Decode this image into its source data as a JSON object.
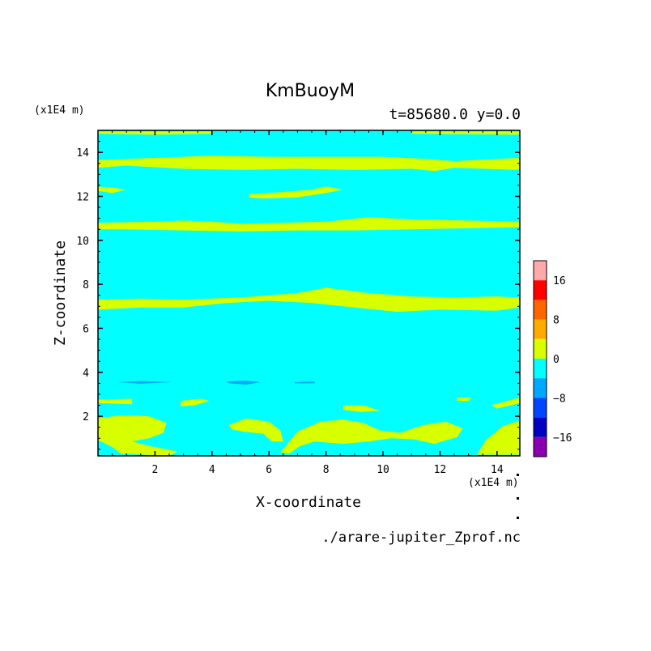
{
  "chart_data": {
    "type": "heatmap",
    "title": "KmBuoyM",
    "subtitle": "t=85680.0 y=0.0",
    "xlabel": "X-coordinate",
    "ylabel": "Z-coordinate",
    "x_unit": "(x1E4 m)",
    "y_unit": "(x1E4 m)",
    "xlim": [
      0,
      14.8
    ],
    "ylim": [
      0.2,
      15
    ],
    "xticks": [
      "2",
      "4",
      "6",
      "8",
      "10",
      "12",
      "14"
    ],
    "xtick_values": [
      2,
      4,
      6,
      8,
      10,
      12,
      14
    ],
    "yticks": [
      "2",
      "4",
      "6",
      "8",
      "10",
      "12",
      "14"
    ],
    "ytick_values": [
      2,
      4,
      6,
      8,
      10,
      12,
      14
    ],
    "background_level_color": "#00ffff",
    "bands": [
      {
        "level": "0 to 4",
        "color": "#d7ff00",
        "points": [
          [
            0,
            13.65
          ],
          [
            2,
            13.75
          ],
          [
            4,
            13.85
          ],
          [
            6,
            13.8
          ],
          [
            8,
            13.8
          ],
          [
            10,
            13.8
          ],
          [
            11.5,
            13.7
          ],
          [
            12.5,
            13.6
          ],
          [
            14.8,
            13.75
          ],
          [
            14.8,
            13.2
          ],
          [
            12.5,
            13.3
          ],
          [
            11.8,
            13.15
          ],
          [
            11,
            13.25
          ],
          [
            9,
            13.2
          ],
          [
            7,
            13.25
          ],
          [
            5,
            13.2
          ],
          [
            3,
            13.25
          ],
          [
            1,
            13.4
          ],
          [
            0,
            13.3
          ]
        ]
      },
      {
        "level": "0 to 4",
        "color": "#d7ff00",
        "points": [
          [
            0,
            12.45
          ],
          [
            0.5,
            12.4
          ],
          [
            1,
            12.3
          ],
          [
            0.5,
            12.15
          ],
          [
            0,
            12.25
          ]
        ]
      },
      {
        "level": "0 to 4",
        "color": "#d7ff00",
        "points": [
          [
            5.3,
            12.1
          ],
          [
            6.5,
            12.2
          ],
          [
            7.5,
            12.3
          ],
          [
            8,
            12.45
          ],
          [
            8.6,
            12.3
          ],
          [
            8,
            12.15
          ],
          [
            7,
            11.95
          ],
          [
            5.8,
            11.9
          ],
          [
            5.3,
            11.95
          ]
        ]
      },
      {
        "level": "0 to 4",
        "color": "#d7ff00",
        "points": [
          [
            0,
            10.8
          ],
          [
            2,
            10.85
          ],
          [
            3,
            10.9
          ],
          [
            4,
            10.85
          ],
          [
            5,
            10.75
          ],
          [
            6.5,
            10.8
          ],
          [
            8,
            10.85
          ],
          [
            9.5,
            11.05
          ],
          [
            11,
            10.95
          ],
          [
            13,
            10.9
          ],
          [
            14.8,
            10.85
          ],
          [
            14.8,
            10.6
          ],
          [
            13,
            10.55
          ],
          [
            11,
            10.5
          ],
          [
            9,
            10.45
          ],
          [
            7,
            10.45
          ],
          [
            5,
            10.4
          ],
          [
            3,
            10.45
          ],
          [
            1,
            10.5
          ],
          [
            0,
            10.5
          ]
        ]
      },
      {
        "level": "0 to 4",
        "color": "#d7ff00",
        "points": [
          [
            0,
            7.3
          ],
          [
            1.5,
            7.35
          ],
          [
            3,
            7.3
          ],
          [
            5,
            7.4
          ],
          [
            7,
            7.6
          ],
          [
            8,
            7.85
          ],
          [
            9.5,
            7.6
          ],
          [
            11,
            7.45
          ],
          [
            12.5,
            7.4
          ],
          [
            14,
            7.45
          ],
          [
            14.8,
            7.4
          ],
          [
            14.8,
            6.95
          ],
          [
            14,
            6.8
          ],
          [
            12,
            6.85
          ],
          [
            10.5,
            6.75
          ],
          [
            9,
            6.95
          ],
          [
            7.5,
            7.15
          ],
          [
            6,
            7.25
          ],
          [
            4.5,
            7.15
          ],
          [
            3,
            6.95
          ],
          [
            1.5,
            6.95
          ],
          [
            0,
            6.85
          ]
        ]
      },
      {
        "level": "0 to 4",
        "color": "#d7ff00",
        "points": [
          [
            0,
            2.75
          ],
          [
            1.2,
            2.8
          ],
          [
            1.2,
            2.55
          ],
          [
            0,
            2.6
          ]
        ]
      },
      {
        "level": "0 to 4",
        "color": "#d7ff00",
        "points": [
          [
            2.9,
            2.7
          ],
          [
            3.6,
            2.8
          ],
          [
            3.9,
            2.7
          ],
          [
            3.4,
            2.5
          ],
          [
            2.9,
            2.45
          ]
        ]
      },
      {
        "level": "0 to 4",
        "color": "#d7ff00",
        "points": [
          [
            0,
            1.9
          ],
          [
            0.8,
            2.05
          ],
          [
            1.8,
            2.0
          ],
          [
            2.4,
            1.7
          ],
          [
            2.3,
            1.25
          ],
          [
            1.8,
            1.0
          ],
          [
            1.2,
            0.85
          ],
          [
            2,
            0.6
          ],
          [
            2.8,
            0.4
          ],
          [
            2.5,
            0.2
          ],
          [
            0.8,
            0.3
          ],
          [
            0.5,
            0.6
          ],
          [
            0.2,
            0.8
          ],
          [
            0,
            0.9
          ]
        ]
      },
      {
        "level": "0 to 4",
        "color": "#d7ff00",
        "points": [
          [
            4.6,
            1.6
          ],
          [
            5.2,
            1.9
          ],
          [
            6,
            1.75
          ],
          [
            6.4,
            1.35
          ],
          [
            6.5,
            0.85
          ],
          [
            6.1,
            0.85
          ],
          [
            5.8,
            1.2
          ],
          [
            5.1,
            1.3
          ],
          [
            4.7,
            1.4
          ]
        ]
      },
      {
        "level": "0 to 4",
        "color": "#d7ff00",
        "points": [
          [
            6.4,
            0.35
          ],
          [
            7.0,
            1.3
          ],
          [
            7.8,
            1.75
          ],
          [
            8.6,
            1.85
          ],
          [
            9.3,
            1.7
          ],
          [
            9.9,
            1.35
          ],
          [
            10.6,
            1.25
          ],
          [
            11.4,
            1.6
          ],
          [
            12.2,
            1.75
          ],
          [
            12.8,
            1.45
          ],
          [
            12.6,
            1.05
          ],
          [
            11.8,
            0.75
          ],
          [
            11.1,
            0.95
          ],
          [
            10.3,
            1.0
          ],
          [
            9.5,
            0.85
          ],
          [
            8.6,
            0.75
          ],
          [
            7.6,
            0.85
          ],
          [
            7.1,
            0.65
          ],
          [
            6.7,
            0.3
          ]
        ]
      },
      {
        "level": "0 to 4",
        "color": "#d7ff00",
        "points": [
          [
            8.6,
            2.5
          ],
          [
            9.3,
            2.5
          ],
          [
            9.9,
            2.25
          ],
          [
            9.2,
            2.2
          ],
          [
            8.6,
            2.3
          ]
        ]
      },
      {
        "level": "0 to 4",
        "color": "#d7ff00",
        "points": [
          [
            12.6,
            2.85
          ],
          [
            13.1,
            2.85
          ],
          [
            13.0,
            2.7
          ],
          [
            12.6,
            2.7
          ]
        ]
      },
      {
        "level": "0 to 4",
        "color": "#d7ff00",
        "points": [
          [
            13.8,
            2.5
          ],
          [
            14.8,
            2.85
          ],
          [
            14.8,
            2.6
          ],
          [
            14.0,
            2.35
          ]
        ]
      },
      {
        "level": "0 to 4",
        "color": "#d7ff00",
        "points": [
          [
            13.3,
            0.25
          ],
          [
            13.6,
            0.9
          ],
          [
            14.2,
            1.55
          ],
          [
            14.8,
            1.8
          ],
          [
            14.8,
            0.25
          ]
        ]
      },
      {
        "level": "0 to 4",
        "color": "#d7ff00",
        "points": [
          [
            0,
            14.95
          ],
          [
            2,
            14.95
          ],
          [
            4,
            14.95
          ],
          [
            4,
            14.85
          ],
          [
            2,
            14.8
          ],
          [
            0,
            14.85
          ]
        ]
      },
      {
        "level": "0 to 4",
        "color": "#d7ff00",
        "points": [
          [
            11,
            14.95
          ],
          [
            14.8,
            14.95
          ],
          [
            14.8,
            14.8
          ],
          [
            11,
            14.85
          ]
        ]
      },
      {
        "level": "-4 to 0",
        "color": "#00a9ff",
        "points": [
          [
            0.7,
            3.55
          ],
          [
            1.5,
            3.6
          ],
          [
            2.6,
            3.55
          ],
          [
            1.5,
            3.48
          ]
        ]
      },
      {
        "level": "-4 to 0",
        "color": "#00a9ff",
        "points": [
          [
            4.5,
            3.58
          ],
          [
            5.2,
            3.62
          ],
          [
            5.7,
            3.55
          ],
          [
            5.2,
            3.44
          ],
          [
            4.6,
            3.5
          ]
        ]
      },
      {
        "level": "-4 to 0",
        "color": "#00a9ff",
        "points": [
          [
            6.9,
            3.55
          ],
          [
            7.6,
            3.58
          ],
          [
            7.6,
            3.5
          ],
          [
            6.9,
            3.5
          ]
        ]
      }
    ],
    "colorbar": {
      "levels": [
        {
          "color": "#ffaaaa"
        },
        {
          "color": "#ff0000"
        },
        {
          "color": "#ff6600"
        },
        {
          "color": "#ffaa00"
        },
        {
          "color": "#d7ff00"
        },
        {
          "color": "#00ffff"
        },
        {
          "color": "#00a9ff"
        },
        {
          "color": "#0046ff"
        },
        {
          "color": "#0000c0"
        },
        {
          "color": "#8a00b0"
        }
      ],
      "ticks": [
        "16",
        "8",
        "0",
        "−8",
        "−16"
      ]
    },
    "grid": false
  },
  "source_file": "./arare-jupiter_Zprof.nc"
}
